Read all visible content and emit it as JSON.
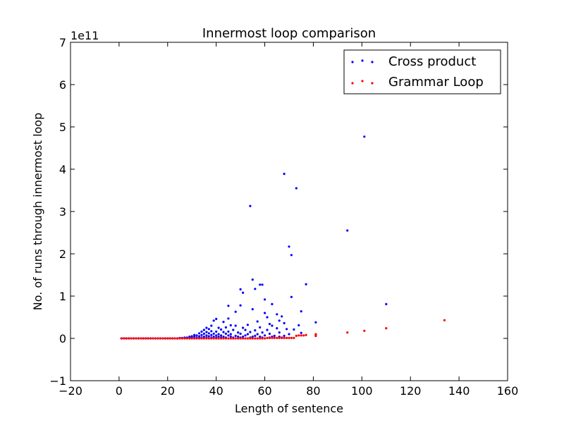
{
  "chart_data": {
    "type": "scatter",
    "title": "Innermost loop comparison",
    "xlabel": "Length of sentence",
    "ylabel": "No. of runs through innermost loop",
    "y_scale_label": "1e11",
    "xlim": [
      -20,
      160
    ],
    "ylim": [
      -1,
      7
    ],
    "x_ticks": [
      -20,
      0,
      20,
      40,
      60,
      80,
      100,
      120,
      140,
      160
    ],
    "y_ticks": [
      -1,
      0,
      1,
      2,
      3,
      4,
      5,
      6,
      7
    ],
    "grid": false,
    "legend": {
      "placement": "top-right"
    },
    "series": [
      {
        "name": "Cross product",
        "color": "#0000ff",
        "points": [
          [
            101,
            4.77
          ],
          [
            68,
            3.89
          ],
          [
            73,
            3.55
          ],
          [
            54,
            3.13
          ],
          [
            94,
            2.55
          ],
          [
            70,
            2.17
          ],
          [
            71,
            1.97
          ],
          [
            55,
            1.39
          ],
          [
            58,
            1.27
          ],
          [
            59,
            1.27
          ],
          [
            77,
            1.28
          ],
          [
            56,
            1.17
          ],
          [
            50,
            1.16
          ],
          [
            51,
            1.08
          ],
          [
            71,
            0.98
          ],
          [
            60,
            0.92
          ],
          [
            110,
            0.81
          ],
          [
            63,
            0.81
          ],
          [
            50,
            0.78
          ],
          [
            45,
            0.77
          ],
          [
            55,
            0.69
          ],
          [
            75,
            0.64
          ],
          [
            48,
            0.63
          ],
          [
            60,
            0.6
          ],
          [
            65,
            0.57
          ],
          [
            67,
            0.52
          ],
          [
            61,
            0.5
          ],
          [
            45,
            0.47
          ],
          [
            40,
            0.46
          ],
          [
            39,
            0.42
          ],
          [
            66,
            0.42
          ],
          [
            43,
            0.39
          ],
          [
            57,
            0.4
          ],
          [
            81,
            0.38
          ],
          [
            62,
            0.34
          ],
          [
            68,
            0.36
          ],
          [
            38,
            0.3
          ],
          [
            46,
            0.31
          ],
          [
            48,
            0.3
          ],
          [
            53,
            0.32
          ],
          [
            63,
            0.3
          ],
          [
            74,
            0.31
          ],
          [
            36,
            0.25
          ],
          [
            41,
            0.25
          ],
          [
            44,
            0.26
          ],
          [
            51,
            0.25
          ],
          [
            58,
            0.26
          ],
          [
            65,
            0.24
          ],
          [
            69,
            0.22
          ],
          [
            35,
            0.2
          ],
          [
            37,
            0.22
          ],
          [
            42,
            0.21
          ],
          [
            47,
            0.2
          ],
          [
            52,
            0.2
          ],
          [
            56,
            0.19
          ],
          [
            61,
            0.2
          ],
          [
            72,
            0.21
          ],
          [
            34,
            0.16
          ],
          [
            36,
            0.15
          ],
          [
            38,
            0.17
          ],
          [
            40,
            0.16
          ],
          [
            43,
            0.15
          ],
          [
            45,
            0.16
          ],
          [
            49,
            0.14
          ],
          [
            54,
            0.15
          ],
          [
            59,
            0.14
          ],
          [
            66,
            0.14
          ],
          [
            75,
            0.13
          ],
          [
            33,
            0.12
          ],
          [
            35,
            0.11
          ],
          [
            37,
            0.12
          ],
          [
            39,
            0.11
          ],
          [
            41,
            0.1
          ],
          [
            44,
            0.11
          ],
          [
            46,
            0.1
          ],
          [
            50,
            0.11
          ],
          [
            53,
            0.1
          ],
          [
            57,
            0.1
          ],
          [
            62,
            0.11
          ],
          [
            70,
            0.1
          ],
          [
            31,
            0.08
          ],
          [
            32,
            0.07
          ],
          [
            34,
            0.08
          ],
          [
            36,
            0.07
          ],
          [
            38,
            0.08
          ],
          [
            40,
            0.07
          ],
          [
            42,
            0.07
          ],
          [
            45,
            0.07
          ],
          [
            48,
            0.06
          ],
          [
            52,
            0.07
          ],
          [
            56,
            0.06
          ],
          [
            60,
            0.07
          ],
          [
            64,
            0.06
          ],
          [
            68,
            0.06
          ],
          [
            81,
            0.06
          ],
          [
            29,
            0.04
          ],
          [
            30,
            0.05
          ],
          [
            31,
            0.04
          ],
          [
            33,
            0.05
          ],
          [
            35,
            0.04
          ],
          [
            37,
            0.05
          ],
          [
            39,
            0.04
          ],
          [
            41,
            0.04
          ],
          [
            43,
            0.04
          ],
          [
            46,
            0.04
          ],
          [
            49,
            0.04
          ],
          [
            51,
            0.04
          ],
          [
            55,
            0.04
          ],
          [
            58,
            0.04
          ],
          [
            63,
            0.04
          ],
          [
            66,
            0.04
          ],
          [
            27,
            0.02
          ],
          [
            28,
            0.02
          ],
          [
            29,
            0.02
          ],
          [
            30,
            0.02
          ],
          [
            32,
            0.02
          ],
          [
            34,
            0.02
          ],
          [
            36,
            0.02
          ],
          [
            38,
            0.02
          ],
          [
            40,
            0.02
          ],
          [
            42,
            0.02
          ],
          [
            44,
            0.02
          ],
          [
            47,
            0.02
          ],
          [
            50,
            0.02
          ],
          [
            54,
            0.02
          ],
          [
            59,
            0.02
          ],
          [
            62,
            0.02
          ],
          [
            67,
            0.02
          ],
          [
            25,
            0.01
          ],
          [
            26,
            0.01
          ],
          [
            27,
            0.01
          ],
          [
            28,
            0.01
          ],
          [
            30,
            0.01
          ],
          [
            33,
            0.01
          ],
          [
            1,
            0.0
          ],
          [
            2,
            0.0
          ],
          [
            3,
            0.0
          ],
          [
            4,
            0.0
          ],
          [
            5,
            0.0
          ],
          [
            6,
            0.0
          ],
          [
            7,
            0.0
          ],
          [
            8,
            0.0
          ],
          [
            9,
            0.0
          ],
          [
            10,
            0.0
          ],
          [
            11,
            0.0
          ],
          [
            12,
            0.0
          ],
          [
            13,
            0.0
          ],
          [
            14,
            0.0
          ],
          [
            15,
            0.0
          ],
          [
            16,
            0.0
          ],
          [
            17,
            0.0
          ],
          [
            18,
            0.0
          ],
          [
            19,
            0.0
          ],
          [
            20,
            0.0
          ],
          [
            21,
            0.0
          ],
          [
            22,
            0.0
          ],
          [
            23,
            0.0
          ],
          [
            24,
            0.0
          ]
        ]
      },
      {
        "name": "Grammar Loop",
        "color": "#ff0000",
        "points": [
          [
            1,
            0.0
          ],
          [
            2,
            0.0
          ],
          [
            3,
            0.0
          ],
          [
            4,
            0.0
          ],
          [
            5,
            0.0
          ],
          [
            6,
            0.0
          ],
          [
            7,
            0.0
          ],
          [
            8,
            0.0
          ],
          [
            9,
            0.0
          ],
          [
            10,
            0.0
          ],
          [
            11,
            0.0
          ],
          [
            12,
            0.0
          ],
          [
            13,
            0.0
          ],
          [
            14,
            0.0
          ],
          [
            15,
            0.0
          ],
          [
            16,
            0.0
          ],
          [
            17,
            0.0
          ],
          [
            18,
            0.0
          ],
          [
            19,
            0.0
          ],
          [
            20,
            0.0
          ],
          [
            21,
            0.0
          ],
          [
            22,
            0.0
          ],
          [
            23,
            0.0
          ],
          [
            24,
            0.0
          ],
          [
            25,
            0.0
          ],
          [
            26,
            0.0
          ],
          [
            27,
            0.0
          ],
          [
            28,
            0.0
          ],
          [
            29,
            0.0
          ],
          [
            30,
            0.0
          ],
          [
            31,
            0.0
          ],
          [
            32,
            0.0
          ],
          [
            33,
            0.0
          ],
          [
            34,
            0.0
          ],
          [
            35,
            0.0
          ],
          [
            36,
            0.0
          ],
          [
            37,
            0.0
          ],
          [
            38,
            0.0
          ],
          [
            39,
            0.0
          ],
          [
            40,
            0.0
          ],
          [
            41,
            0.0
          ],
          [
            42,
            0.0
          ],
          [
            43,
            0.0
          ],
          [
            44,
            0.0
          ],
          [
            45,
            0.0
          ],
          [
            46,
            0.0
          ],
          [
            47,
            0.0
          ],
          [
            48,
            0.0
          ],
          [
            49,
            0.0
          ],
          [
            50,
            0.0
          ],
          [
            51,
            0.0
          ],
          [
            52,
            0.0
          ],
          [
            53,
            0.0
          ],
          [
            54,
            0.0
          ],
          [
            55,
            0.0
          ],
          [
            56,
            0.0
          ],
          [
            57,
            0.0
          ],
          [
            58,
            0.0
          ],
          [
            59,
            0.0
          ],
          [
            60,
            0.0
          ],
          [
            61,
            0.01
          ],
          [
            62,
            0.01
          ],
          [
            63,
            0.01
          ],
          [
            64,
            0.01
          ],
          [
            65,
            0.01
          ],
          [
            66,
            0.01
          ],
          [
            67,
            0.01
          ],
          [
            68,
            0.01
          ],
          [
            69,
            0.01
          ],
          [
            70,
            0.01
          ],
          [
            71,
            0.01
          ],
          [
            72,
            0.01
          ],
          [
            73,
            0.06
          ],
          [
            74,
            0.07
          ],
          [
            75,
            0.07
          ],
          [
            76,
            0.07
          ],
          [
            77,
            0.08
          ],
          [
            81,
            0.06
          ],
          [
            81,
            0.1
          ],
          [
            94,
            0.14
          ],
          [
            101,
            0.18
          ],
          [
            110,
            0.24
          ],
          [
            134,
            0.43
          ]
        ]
      }
    ]
  }
}
